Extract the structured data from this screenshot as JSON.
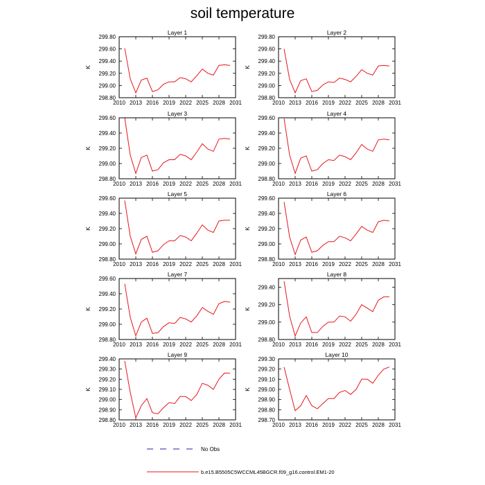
{
  "title": "soil temperature",
  "legend": [
    {
      "label": "No Obs",
      "color": "#1f1fa0",
      "style": "dashed"
    },
    {
      "label": "b.e15.B5505C5WCCML45BGCR.f09_g16.control.EM1-20",
      "color": "#e8141a",
      "style": "solid"
    }
  ],
  "chart_data": [
    {
      "type": "line",
      "title": "Layer 1",
      "ylabel": "K",
      "xlim": [
        2010,
        2031
      ],
      "ylim": [
        298.8,
        299.8
      ],
      "xticks": [
        "2010",
        "2013",
        "2016",
        "2019",
        "2022",
        "2025",
        "2028",
        "2031"
      ],
      "yticks": [
        "298.80",
        "299.00",
        "299.20",
        "299.40",
        "299.60",
        "299.80"
      ],
      "series": [
        {
          "x": [
            2011,
            2012,
            2013,
            2014,
            2015,
            2016,
            2017,
            2018,
            2019,
            2020,
            2021,
            2022,
            2023,
            2024,
            2025,
            2026,
            2027,
            2028,
            2029,
            2030
          ],
          "values": [
            299.61,
            299.11,
            298.88,
            299.09,
            299.12,
            298.9,
            298.93,
            299.02,
            299.06,
            299.06,
            299.13,
            299.11,
            299.06,
            299.16,
            299.27,
            299.2,
            299.17,
            299.33,
            299.34,
            299.33
          ]
        }
      ]
    },
    {
      "type": "line",
      "title": "Layer 2",
      "ylabel": "K",
      "xlim": [
        2010,
        2031
      ],
      "ylim": [
        298.8,
        299.8
      ],
      "xticks": [
        "2010",
        "2013",
        "2016",
        "2019",
        "2022",
        "2025",
        "2028",
        "2031"
      ],
      "yticks": [
        "298.80",
        "299.00",
        "299.20",
        "299.40",
        "299.60",
        "299.80"
      ],
      "series": [
        {
          "x": [
            2011,
            2012,
            2013,
            2014,
            2015,
            2016,
            2017,
            2018,
            2019,
            2020,
            2021,
            2022,
            2023,
            2024,
            2025,
            2026,
            2027,
            2028,
            2029,
            2030
          ],
          "values": [
            299.6,
            299.1,
            298.88,
            299.08,
            299.11,
            298.9,
            298.92,
            299.01,
            299.06,
            299.05,
            299.12,
            299.1,
            299.06,
            299.15,
            299.26,
            299.2,
            299.17,
            299.32,
            299.33,
            299.32
          ]
        }
      ]
    },
    {
      "type": "line",
      "title": "Layer 3",
      "ylabel": "K",
      "xlim": [
        2010,
        2031
      ],
      "ylim": [
        298.8,
        299.6
      ],
      "xticks": [
        "2010",
        "2013",
        "2016",
        "2019",
        "2022",
        "2025",
        "2028",
        "2031"
      ],
      "yticks": [
        "298.80",
        "299.00",
        "299.20",
        "299.40",
        "299.60"
      ],
      "series": [
        {
          "x": [
            2011,
            2012,
            2013,
            2014,
            2015,
            2016,
            2017,
            2018,
            2019,
            2020,
            2021,
            2022,
            2023,
            2024,
            2025,
            2026,
            2027,
            2028,
            2029,
            2030
          ],
          "values": [
            299.6,
            299.11,
            298.87,
            299.08,
            299.11,
            298.9,
            298.92,
            299.01,
            299.05,
            299.05,
            299.12,
            299.1,
            299.05,
            299.15,
            299.26,
            299.19,
            299.16,
            299.32,
            299.33,
            299.32
          ]
        }
      ]
    },
    {
      "type": "line",
      "title": "Layer 4",
      "ylabel": "K",
      "xlim": [
        2010,
        2031
      ],
      "ylim": [
        298.8,
        299.6
      ],
      "xticks": [
        "2010",
        "2013",
        "2016",
        "2019",
        "2022",
        "2025",
        "2028",
        "2031"
      ],
      "yticks": [
        "298.80",
        "299.00",
        "299.20",
        "299.40",
        "299.60"
      ],
      "series": [
        {
          "x": [
            2011,
            2012,
            2013,
            2014,
            2015,
            2016,
            2017,
            2018,
            2019,
            2020,
            2021,
            2022,
            2023,
            2024,
            2025,
            2026,
            2027,
            2028,
            2029,
            2030
          ],
          "values": [
            299.59,
            299.11,
            298.87,
            299.07,
            299.1,
            298.9,
            298.92,
            299.0,
            299.05,
            299.04,
            299.11,
            299.09,
            299.05,
            299.14,
            299.25,
            299.19,
            299.16,
            299.31,
            299.32,
            299.31
          ]
        }
      ]
    },
    {
      "type": "line",
      "title": "Layer 5",
      "ylabel": "K",
      "xlim": [
        2010,
        2031
      ],
      "ylim": [
        298.8,
        299.6
      ],
      "xticks": [
        "2010",
        "2013",
        "2016",
        "2019",
        "2022",
        "2025",
        "2028",
        "2031"
      ],
      "yticks": [
        "298.80",
        "299.00",
        "299.20",
        "299.40",
        "299.60"
      ],
      "series": [
        {
          "x": [
            2011,
            2012,
            2013,
            2014,
            2015,
            2016,
            2017,
            2018,
            2019,
            2020,
            2021,
            2022,
            2023,
            2024,
            2025,
            2026,
            2027,
            2028,
            2029,
            2030
          ],
          "values": [
            299.57,
            299.1,
            298.87,
            299.06,
            299.1,
            298.89,
            298.91,
            298.99,
            299.04,
            299.04,
            299.11,
            299.09,
            299.04,
            299.14,
            299.25,
            299.18,
            299.15,
            299.3,
            299.31,
            299.31
          ]
        }
      ]
    },
    {
      "type": "line",
      "title": "Layer 6",
      "ylabel": "K",
      "xlim": [
        2010,
        2031
      ],
      "ylim": [
        298.8,
        299.6
      ],
      "xticks": [
        "2010",
        "2013",
        "2016",
        "2019",
        "2022",
        "2025",
        "2028",
        "2031"
      ],
      "yticks": [
        "298.80",
        "299.00",
        "299.20",
        "299.40",
        "299.60"
      ],
      "series": [
        {
          "x": [
            2011,
            2012,
            2013,
            2014,
            2015,
            2016,
            2017,
            2018,
            2019,
            2020,
            2021,
            2022,
            2023,
            2024,
            2025,
            2026,
            2027,
            2028,
            2029,
            2030
          ],
          "values": [
            299.55,
            299.09,
            298.86,
            299.05,
            299.09,
            298.89,
            298.91,
            298.98,
            299.03,
            299.03,
            299.1,
            299.08,
            299.04,
            299.13,
            299.23,
            299.18,
            299.15,
            299.29,
            299.31,
            299.3
          ]
        }
      ]
    },
    {
      "type": "line",
      "title": "Layer 7",
      "ylabel": "K",
      "xlim": [
        2010,
        2031
      ],
      "ylim": [
        298.8,
        299.6
      ],
      "xticks": [
        "2010",
        "2013",
        "2016",
        "2019",
        "2022",
        "2025",
        "2028",
        "2031"
      ],
      "yticks": [
        "298.80",
        "299.00",
        "299.20",
        "299.40",
        "299.60"
      ],
      "series": [
        {
          "x": [
            2011,
            2012,
            2013,
            2014,
            2015,
            2016,
            2017,
            2018,
            2019,
            2020,
            2021,
            2022,
            2023,
            2024,
            2025,
            2026,
            2027,
            2028,
            2029,
            2030
          ],
          "values": [
            299.53,
            299.09,
            298.85,
            299.03,
            299.08,
            298.88,
            298.89,
            298.97,
            299.02,
            299.01,
            299.09,
            299.07,
            299.03,
            299.11,
            299.22,
            299.17,
            299.13,
            299.27,
            299.3,
            299.29
          ]
        }
      ]
    },
    {
      "type": "line",
      "title": "Layer 8",
      "ylabel": "K",
      "xlim": [
        2010,
        2031
      ],
      "ylim": [
        298.8,
        299.5
      ],
      "xticks": [
        "2010",
        "2013",
        "2016",
        "2019",
        "2022",
        "2025",
        "2028",
        "2031"
      ],
      "yticks": [
        "298.80",
        "299.00",
        "299.20",
        "299.40"
      ],
      "series": [
        {
          "x": [
            2011,
            2012,
            2013,
            2014,
            2015,
            2016,
            2017,
            2018,
            2019,
            2020,
            2021,
            2022,
            2023,
            2024,
            2025,
            2026,
            2027,
            2028,
            2029,
            2030
          ],
          "values": [
            299.47,
            299.07,
            298.84,
            298.99,
            299.06,
            298.88,
            298.88,
            298.95,
            299.0,
            299.0,
            299.07,
            299.06,
            299.01,
            299.09,
            299.2,
            299.16,
            299.12,
            299.25,
            299.29,
            299.29
          ]
        }
      ]
    },
    {
      "type": "line",
      "title": "Layer 9",
      "ylabel": "K",
      "xlim": [
        2010,
        2031
      ],
      "ylim": [
        298.8,
        299.4
      ],
      "xticks": [
        "2010",
        "2013",
        "2016",
        "2019",
        "2022",
        "2025",
        "2028",
        "2031"
      ],
      "yticks": [
        "298.80",
        "298.90",
        "299.00",
        "299.10",
        "299.20",
        "299.30",
        "299.40"
      ],
      "series": [
        {
          "x": [
            2011,
            2012,
            2013,
            2014,
            2015,
            2016,
            2017,
            2018,
            2019,
            2020,
            2021,
            2022,
            2023,
            2024,
            2025,
            2026,
            2027,
            2028,
            2029,
            2030
          ],
          "values": [
            299.38,
            299.07,
            298.82,
            298.94,
            299.01,
            298.87,
            298.86,
            298.92,
            298.97,
            298.96,
            299.03,
            299.03,
            298.99,
            299.05,
            299.16,
            299.14,
            299.1,
            299.2,
            299.26,
            299.26
          ]
        }
      ]
    },
    {
      "type": "line",
      "title": "Layer 10",
      "ylabel": "K",
      "xlim": [
        2010,
        2031
      ],
      "ylim": [
        298.7,
        299.3
      ],
      "xticks": [
        "2010",
        "2013",
        "2016",
        "2019",
        "2022",
        "2025",
        "2028",
        "2031"
      ],
      "yticks": [
        "298.70",
        "298.80",
        "298.90",
        "299.00",
        "299.10",
        "299.20",
        "299.30"
      ],
      "series": [
        {
          "x": [
            2011,
            2012,
            2013,
            2014,
            2015,
            2016,
            2017,
            2018,
            2019,
            2020,
            2021,
            2022,
            2023,
            2024,
            2025,
            2026,
            2027,
            2028,
            2029,
            2030
          ],
          "values": [
            299.22,
            299.0,
            298.79,
            298.84,
            298.94,
            298.84,
            298.81,
            298.86,
            298.91,
            298.91,
            298.97,
            298.99,
            298.95,
            299.0,
            299.1,
            299.1,
            299.06,
            299.14,
            299.2,
            299.22
          ]
        }
      ]
    }
  ]
}
